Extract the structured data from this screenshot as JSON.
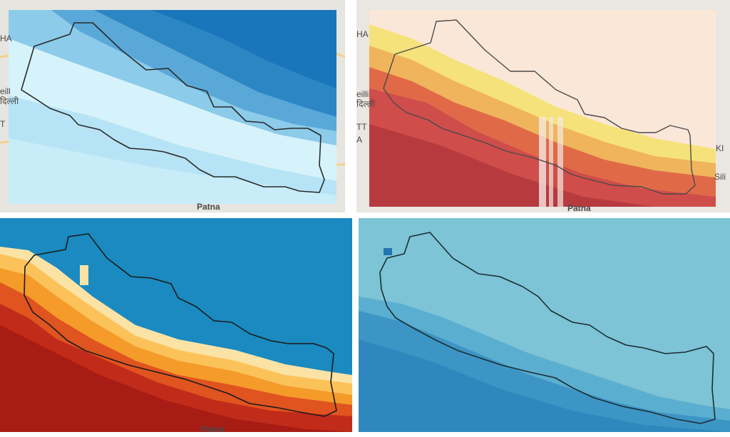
{
  "panels": [
    {
      "id": "top-left",
      "palette": [
        "#d6f3fb",
        "#b6e4f6",
        "#8ccbea",
        "#5aa8d8",
        "#2d86c4",
        "#0f6db3"
      ],
      "basemap_labels": [
        "HA",
        "eill",
        "दिल्ली",
        "T",
        "Patna"
      ]
    },
    {
      "id": "top-right",
      "palette": [
        "#fbe7d8",
        "#f6e27a",
        "#f0b45c",
        "#e06a47",
        "#cf4d4a",
        "#b73a3f"
      ],
      "basemap_labels": [
        "HA",
        "eilli",
        "दिल्ली",
        "TT",
        "A",
        "KI",
        "Sili",
        "Patna"
      ]
    },
    {
      "id": "bottom-left",
      "palette": [
        "#fbe3a6",
        "#fcc25a",
        "#f49b2a",
        "#e0541f",
        "#c02b1a",
        "#a71c14",
        "#1a8ac0"
      ],
      "basemap_labels": [
        "Patna"
      ]
    },
    {
      "id": "bottom-right",
      "palette": [
        "#7cc4d6",
        "#5aaed0",
        "#3c95c4",
        "#2277b0"
      ],
      "basemap_labels": []
    }
  ],
  "legend_note": ""
}
